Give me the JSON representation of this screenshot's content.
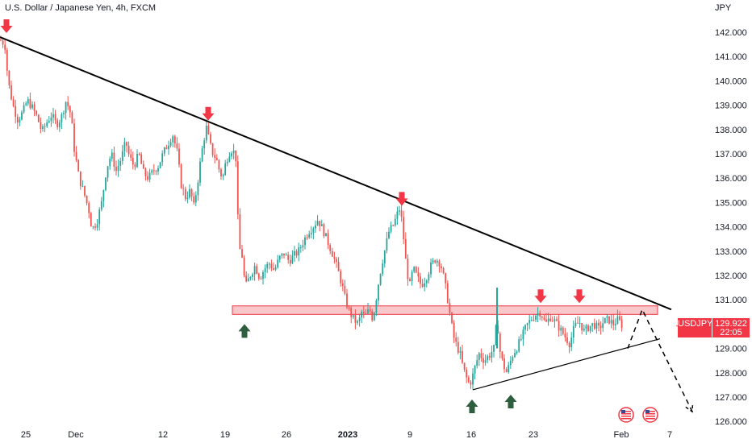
{
  "header": {
    "title": "U.S. Dollar / Japanese Yen, 4h, FXCM",
    "currency": "JPY"
  },
  "price_badge": {
    "symbol": "USDJPY",
    "price": "129.922",
    "countdown": "22:05",
    "color": "#f23645"
  },
  "colors": {
    "up": "#26a69a",
    "down": "#ef5350",
    "trendline": "#000000",
    "zone_fill": "#f7b4b8",
    "zone_border": "#f23645",
    "arrow_down": "#f23645",
    "arrow_up": "#2e5e3e"
  },
  "events_icon": "us-flag-event-icon",
  "chart_data": {
    "type": "candlestick",
    "instrument": "USDJPY",
    "timeframe": "4h",
    "y_ticks": [
      126.0,
      127.0,
      128.0,
      129.0,
      130.0,
      131.0,
      132.0,
      133.0,
      134.0,
      135.0,
      136.0,
      137.0,
      138.0,
      139.0,
      140.0,
      141.0,
      142.0
    ],
    "y_tick_labels": [
      "126.000",
      "127.000",
      "128.000",
      "129.000",
      "130.000",
      "131.000",
      "132.000",
      "133.000",
      "134.000",
      "135.000",
      "136.000",
      "137.000",
      "138.000",
      "139.000",
      "140.000",
      "141.000",
      "142.000"
    ],
    "ylim": [
      125.8,
      142.9
    ],
    "x_ticks": [
      {
        "label": "25",
        "bold": false
      },
      {
        "label": "Dec",
        "bold": false
      },
      {
        "label": "12",
        "bold": false
      },
      {
        "label": "19",
        "bold": false
      },
      {
        "label": "26",
        "bold": false
      },
      {
        "label": "2023",
        "bold": true
      },
      {
        "label": "9",
        "bold": false
      },
      {
        "label": "16",
        "bold": false
      },
      {
        "label": "23",
        "bold": false
      },
      {
        "label": "Feb",
        "bold": false
      },
      {
        "label": "7",
        "bold": false
      }
    ],
    "price_path": [
      [
        0,
        141.7
      ],
      [
        6,
        141.5
      ],
      [
        10,
        140.0
      ],
      [
        16,
        139.0
      ],
      [
        22,
        138.4
      ],
      [
        28,
        138.7
      ],
      [
        34,
        139.2
      ],
      [
        40,
        138.9
      ],
      [
        46,
        138.5
      ],
      [
        52,
        137.9
      ],
      [
        58,
        138.3
      ],
      [
        64,
        138.6
      ],
      [
        70,
        138.2
      ],
      [
        76,
        138.5
      ],
      [
        82,
        139.2
      ],
      [
        88,
        138.6
      ],
      [
        92,
        137.2
      ],
      [
        98,
        136.0
      ],
      [
        104,
        135.4
      ],
      [
        110,
        134.7
      ],
      [
        114,
        133.9
      ],
      [
        120,
        134.2
      ],
      [
        126,
        135.0
      ],
      [
        132,
        136.4
      ],
      [
        138,
        137.0
      ],
      [
        144,
        136.3
      ],
      [
        150,
        136.8
      ],
      [
        156,
        137.5
      ],
      [
        160,
        136.9
      ],
      [
        166,
        136.5
      ],
      [
        172,
        137.0
      ],
      [
        178,
        136.2
      ],
      [
        184,
        136.0
      ],
      [
        190,
        136.3
      ],
      [
        196,
        136.5
      ],
      [
        202,
        137.0
      ],
      [
        208,
        137.4
      ],
      [
        214,
        137.8
      ],
      [
        220,
        137.0
      ],
      [
        224,
        135.8
      ],
      [
        230,
        135.2
      ],
      [
        236,
        135.5
      ],
      [
        240,
        134.8
      ],
      [
        244,
        135.6
      ],
      [
        248,
        136.6
      ],
      [
        252,
        137.5
      ],
      [
        256,
        138.1
      ],
      [
        260,
        137.4
      ],
      [
        264,
        137.0
      ],
      [
        268,
        136.8
      ],
      [
        272,
        136.3
      ],
      [
        276,
        136.0
      ],
      [
        280,
        136.7
      ],
      [
        286,
        137.2
      ],
      [
        292,
        137.0
      ],
      [
        296,
        133.2
      ],
      [
        300,
        132.8
      ],
      [
        304,
        131.5
      ],
      [
        310,
        132.0
      ],
      [
        316,
        132.4
      ],
      [
        322,
        131.9
      ],
      [
        328,
        132.3
      ],
      [
        334,
        132.5
      ],
      [
        340,
        132.2
      ],
      [
        346,
        132.7
      ],
      [
        352,
        132.9
      ],
      [
        358,
        132.6
      ],
      [
        364,
        132.8
      ],
      [
        370,
        133.0
      ],
      [
        376,
        133.4
      ],
      [
        382,
        133.8
      ],
      [
        388,
        134.0
      ],
      [
        394,
        134.3
      ],
      [
        400,
        133.9
      ],
      [
        406,
        133.4
      ],
      [
        412,
        132.9
      ],
      [
        418,
        132.3
      ],
      [
        424,
        131.6
      ],
      [
        428,
        131.0
      ],
      [
        432,
        130.6
      ],
      [
        438,
        130.2
      ],
      [
        444,
        130.0
      ],
      [
        448,
        130.5
      ],
      [
        452,
        130.3
      ],
      [
        458,
        130.6
      ],
      [
        462,
        130.2
      ],
      [
        466,
        131.0
      ],
      [
        470,
        131.9
      ],
      [
        474,
        132.6
      ],
      [
        478,
        133.2
      ],
      [
        482,
        133.8
      ],
      [
        488,
        134.1
      ],
      [
        492,
        134.5
      ],
      [
        496,
        134.8
      ],
      [
        500,
        133.6
      ],
      [
        504,
        132.2
      ],
      [
        508,
        131.6
      ],
      [
        512,
        132.3
      ],
      [
        516,
        132.0
      ],
      [
        522,
        131.6
      ],
      [
        528,
        131.9
      ],
      [
        534,
        132.4
      ],
      [
        540,
        132.7
      ],
      [
        546,
        132.5
      ],
      [
        550,
        131.9
      ],
      [
        554,
        131.2
      ],
      [
        558,
        130.3
      ],
      [
        562,
        129.5
      ],
      [
        566,
        129.1
      ],
      [
        570,
        128.8
      ],
      [
        574,
        128.2
      ],
      [
        578,
        127.8
      ],
      [
        582,
        127.5
      ],
      [
        586,
        127.9
      ],
      [
        590,
        128.4
      ],
      [
        594,
        128.8
      ],
      [
        600,
        128.5
      ],
      [
        606,
        128.7
      ],
      [
        612,
        129.0
      ],
      [
        616,
        130.2
      ],
      [
        620,
        128.8
      ],
      [
        624,
        128.3
      ],
      [
        628,
        128.0
      ],
      [
        632,
        128.4
      ],
      [
        636,
        128.8
      ],
      [
        640,
        129.0
      ],
      [
        646,
        129.4
      ],
      [
        652,
        129.9
      ],
      [
        658,
        130.2
      ],
      [
        664,
        130.4
      ],
      [
        670,
        130.5
      ],
      [
        676,
        130.0
      ],
      [
        682,
        130.3
      ],
      [
        688,
        130.1
      ],
      [
        694,
        129.8
      ],
      [
        700,
        129.5
      ],
      [
        706,
        129.2
      ],
      [
        712,
        129.9
      ],
      [
        718,
        130.1
      ],
      [
        724,
        129.7
      ],
      [
        730,
        129.9
      ],
      [
        736,
        130.0
      ],
      [
        742,
        129.8
      ],
      [
        748,
        130.1
      ],
      [
        754,
        130.2
      ],
      [
        760,
        130.0
      ],
      [
        766,
        130.2
      ],
      [
        772,
        129.9
      ]
    ],
    "bullish_spikes": [
      [
        616,
        129.0,
        131.5
      ]
    ],
    "trendlines": {
      "descending_resistance": [
        [
          0,
          141.8
        ],
        [
          832,
          130.6
        ]
      ],
      "ascending_support": [
        [
          586,
          127.3
        ],
        [
          818,
          129.4
        ]
      ]
    },
    "resistance_zone": {
      "low": 130.4,
      "high": 130.75,
      "x_start": 288,
      "x_end": 815
    },
    "projection_path": [
      [
        778,
        129.0
      ],
      [
        796,
        130.6
      ],
      [
        812,
        129.5
      ],
      [
        858,
        126.4
      ]
    ],
    "down_markers": [
      [
        8,
        142.0
      ],
      [
        258,
        138.4
      ],
      [
        498,
        134.9
      ],
      [
        670,
        130.9
      ],
      [
        718,
        130.9
      ]
    ],
    "up_markers": [
      [
        303,
        130.0
      ],
      [
        585,
        126.9
      ],
      [
        633,
        127.1
      ]
    ]
  }
}
